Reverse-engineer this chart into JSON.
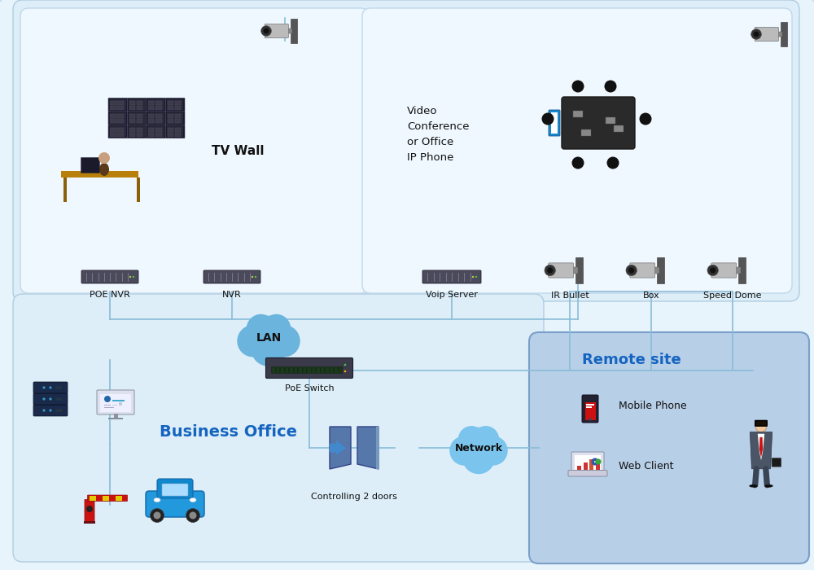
{
  "bg_outer": "#e8f4fb",
  "bg_top_box": "#ddeef8",
  "bg_bottom_box": "#ddeef8",
  "bg_remote_box": "#b8cfe8",
  "title_main": "Business Office",
  "title_remote": "Remote site",
  "label_tv_wall": "TV Wall",
  "label_poe_nvr": "POE NVR",
  "label_nvr": "NVR",
  "label_voip": "Voip Server",
  "label_video_conf": "Video\nConference\nor Office\nIP Phone",
  "label_lan": "LAN",
  "label_poe_switch": "PoE Switch",
  "label_ir_bullet": "IR Bullet",
  "label_box": "Box",
  "label_speed_dome": "Speed Dome",
  "label_controlling": "Controlling 2 doors",
  "label_network": "Network",
  "label_mobile": "Mobile Phone",
  "label_web_client": "Web Client",
  "color_blue_text": "#1565C0",
  "color_line": "#8abcd8",
  "color_line2": "#aaaaaa"
}
